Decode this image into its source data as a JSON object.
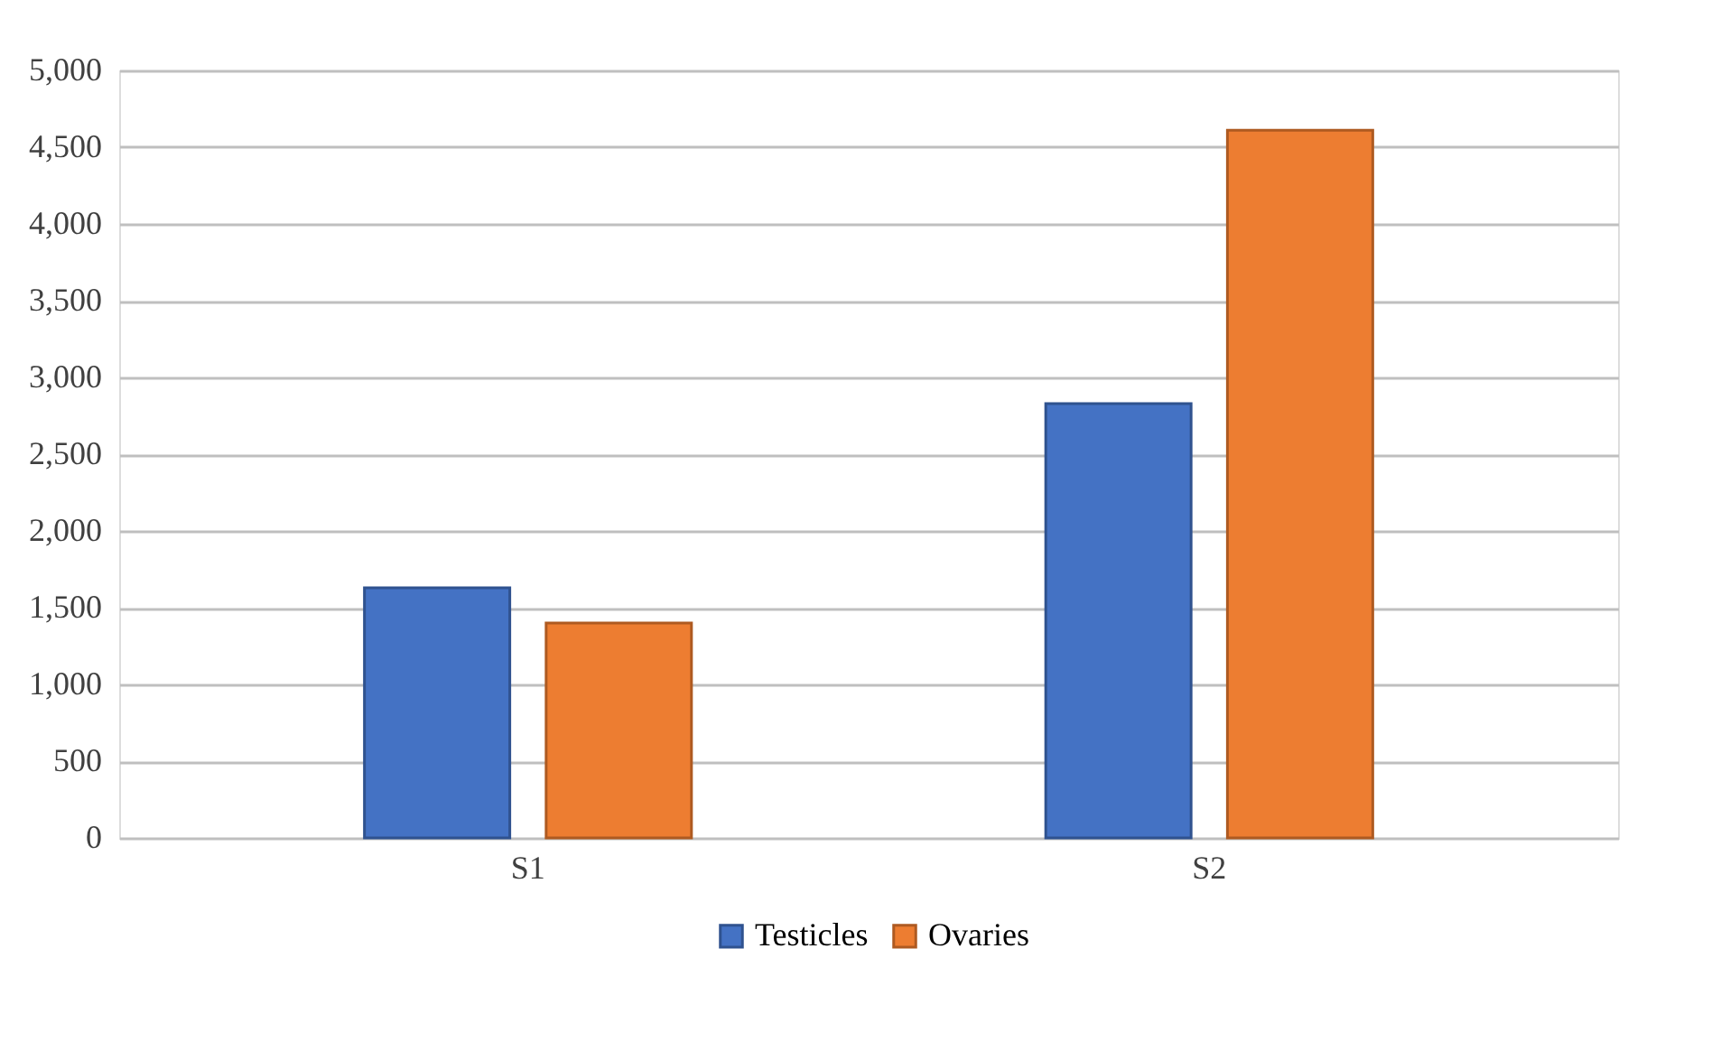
{
  "chart_data": {
    "type": "bar",
    "categories": [
      "S1",
      "S2"
    ],
    "series": [
      {
        "name": "Testicles",
        "color": "#4472c4",
        "values": [
          1630,
          2830
        ]
      },
      {
        "name": "Ovaries",
        "color": "#ed7d31",
        "values": [
          1400,
          4610
        ]
      }
    ],
    "ylim": [
      0,
      5000
    ],
    "yticks": [
      0,
      {
        "value": 500,
        "label": "500"
      },
      {
        "value": 1000,
        "label": "1,000"
      },
      {
        "value": 1500,
        "label": "1,500"
      },
      {
        "value": 2000,
        "label": "2,000"
      },
      {
        "value": 2500,
        "label": "2,500"
      },
      {
        "value": 3000,
        "label": "3,000"
      },
      {
        "value": 3500,
        "label": "3,500"
      },
      {
        "value": 4000,
        "label": "4,000"
      },
      {
        "value": 4500,
        "label": "4,500"
      },
      {
        "value": 5000,
        "label": "5,000"
      }
    ],
    "grid": "y",
    "legend": "bottom"
  }
}
